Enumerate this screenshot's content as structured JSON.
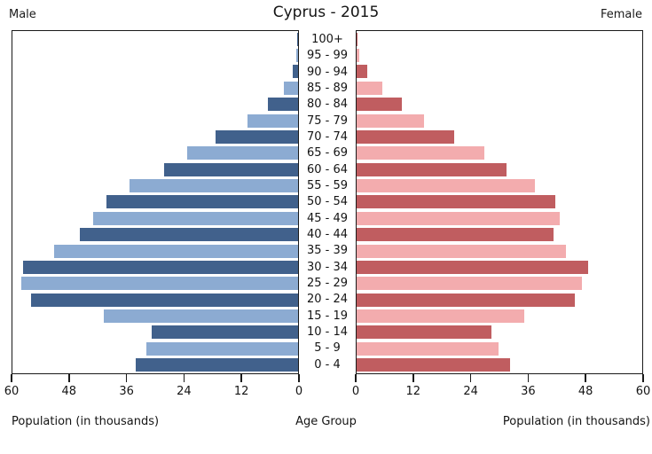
{
  "header": {
    "male_label": "Male",
    "title": "Cyprus - 2015",
    "female_label": "Female"
  },
  "footer": {
    "left_label": "Population (in thousands)",
    "center_label": "Age Group",
    "right_label": "Population (in thousands)"
  },
  "chart_data": {
    "type": "bar",
    "variant": "population-pyramid",
    "title": "Cyprus - 2015",
    "center_label": "Age Group",
    "xlabel": "Population (in thousands)",
    "age_groups_top_to_bottom": [
      "100+",
      "95 - 99",
      "90 - 94",
      "85 - 89",
      "80 - 84",
      "75 - 79",
      "70 - 74",
      "65 - 69",
      "60 - 64",
      "55 - 59",
      "50 - 54",
      "45 - 49",
      "40 - 44",
      "35 - 39",
      "30 - 34",
      "25 - 29",
      "20 - 24",
      "15 - 19",
      "10 - 14",
      "5 - 9",
      "0 - 4"
    ],
    "series": [
      {
        "name": "Male",
        "side": "left",
        "values_thousands": [
          0.1,
          0.3,
          1.1,
          2.9,
          6.4,
          10.6,
          17.3,
          23.3,
          28.2,
          35.4,
          40.2,
          43.0,
          45.8,
          51.3,
          57.7,
          58.1,
          56.0,
          40.8,
          30.8,
          31.9,
          34.1
        ]
      },
      {
        "name": "Female",
        "side": "right",
        "values_thousands": [
          0.2,
          0.5,
          2.2,
          5.4,
          9.5,
          14.2,
          20.5,
          26.9,
          31.4,
          37.5,
          41.8,
          42.6,
          41.4,
          43.9,
          48.7,
          47.3,
          45.8,
          35.3,
          28.4,
          29.8,
          32.2
        ]
      }
    ],
    "xlim": [
      0,
      60
    ],
    "male_axis_tick_labels": [
      "60",
      "48",
      "36",
      "24",
      "12",
      "0"
    ],
    "female_axis_tick_labels": [
      "0",
      "12",
      "24",
      "36",
      "48",
      "60"
    ],
    "grid": false,
    "legend": "none",
    "colors": {
      "male_dark": "#41618C",
      "male_light": "#8CABD2",
      "female_dark": "#C05D60",
      "female_light": "#F3ACAE",
      "axis": "#1A1A1A",
      "background": "#FFFFFF"
    }
  }
}
